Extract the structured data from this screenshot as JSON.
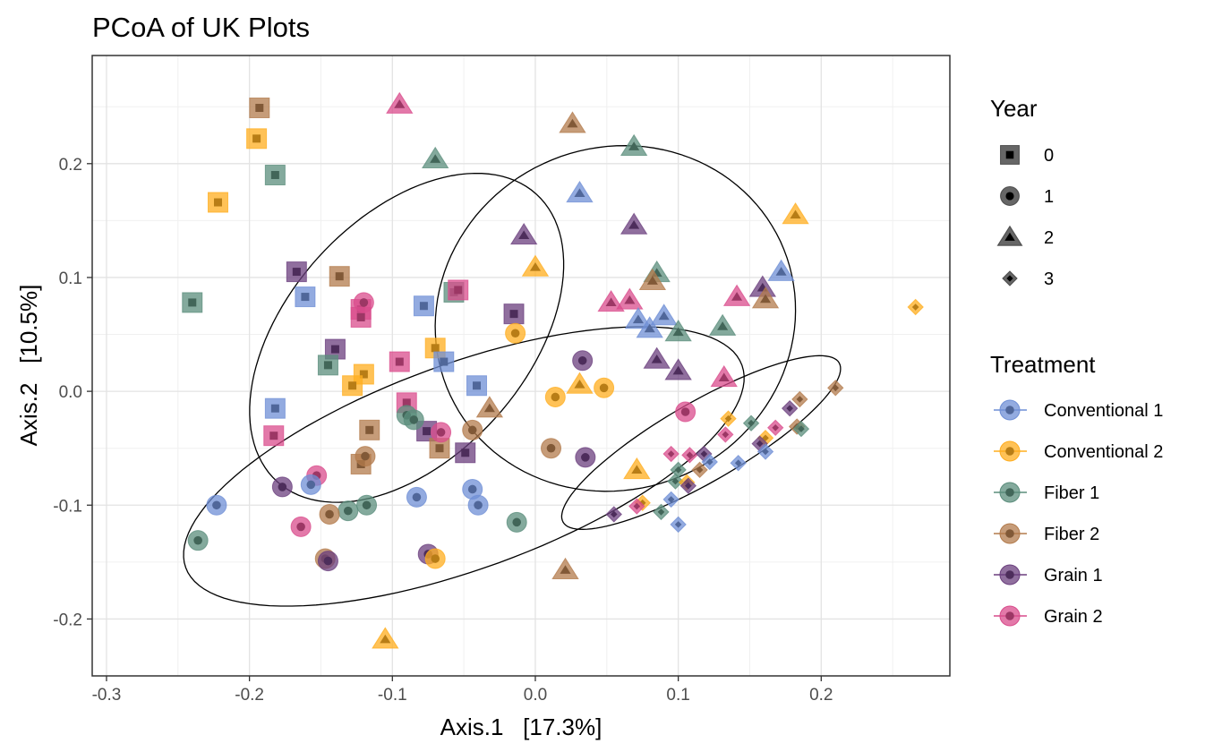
{
  "chart_data": {
    "type": "scatter",
    "title": "PCoA of UK Plots",
    "xlabel": "Axis.1   [17.3%]",
    "ylabel": "Axis.2   [10.5%]",
    "xlim": [
      -0.31,
      0.29
    ],
    "ylim": [
      -0.25,
      0.295
    ],
    "xticks": [
      -0.3,
      -0.2,
      -0.1,
      0.0,
      0.1,
      0.2
    ],
    "xtick_labels": [
      "-0.3",
      "-0.2",
      "-0.1",
      "0.0",
      "0.1",
      "0.2"
    ],
    "yticks": [
      -0.2,
      -0.1,
      0.0,
      0.1,
      0.2
    ],
    "ytick_labels": [
      "-0.2",
      "-0.1",
      "0.0",
      "0.1",
      "0.2"
    ],
    "grid": true,
    "legend_position": "right",
    "legend_year": {
      "title": "Year",
      "items": [
        {
          "label": "0",
          "shape": "square"
        },
        {
          "label": "1",
          "shape": "circle"
        },
        {
          "label": "2",
          "shape": "triangle"
        },
        {
          "label": "3",
          "shape": "diamond"
        }
      ]
    },
    "legend_treatment": {
      "title": "Treatment",
      "items": [
        {
          "label": "Conventional 1",
          "color": "#6f8fd6"
        },
        {
          "label": "Conventional 2",
          "color": "#ffad1f"
        },
        {
          "label": "Fiber 1",
          "color": "#5b8d7c"
        },
        {
          "label": "Fiber 2",
          "color": "#b37b4c"
        },
        {
          "label": "Grain 1",
          "color": "#6b3f7e"
        },
        {
          "label": "Grain 2",
          "color": "#d94c8c"
        }
      ]
    },
    "ellipses": [
      {
        "cx": -0.09,
        "cy": 0.047,
        "rx": 0.17,
        "ry": 0.105,
        "angle_deg": 48
      },
      {
        "cx": 0.056,
        "cy": 0.064,
        "rx": 0.15,
        "ry": 0.16,
        "angle_deg": 115
      },
      {
        "cx": -0.05,
        "cy": -0.066,
        "rx": 0.26,
        "ry": 0.09,
        "angle_deg": 20
      },
      {
        "cx": 0.116,
        "cy": -0.045,
        "rx": 0.14,
        "ry": 0.035,
        "angle_deg": 30
      }
    ],
    "points": [
      {
        "x": -0.193,
        "y": 0.249,
        "year": 0,
        "treatment": "Fiber 2"
      },
      {
        "x": -0.195,
        "y": 0.222,
        "year": 0,
        "treatment": "Conventional 2"
      },
      {
        "x": -0.182,
        "y": 0.19,
        "year": 0,
        "treatment": "Fiber 1"
      },
      {
        "x": -0.222,
        "y": 0.166,
        "year": 0,
        "treatment": "Conventional 2"
      },
      {
        "x": -0.167,
        "y": 0.105,
        "year": 0,
        "treatment": "Grain 1"
      },
      {
        "x": -0.137,
        "y": 0.101,
        "year": 0,
        "treatment": "Fiber 2"
      },
      {
        "x": -0.161,
        "y": 0.083,
        "year": 0,
        "treatment": "Conventional 1"
      },
      {
        "x": -0.24,
        "y": 0.078,
        "year": 0,
        "treatment": "Fiber 1"
      },
      {
        "x": -0.122,
        "y": 0.072,
        "year": 0,
        "treatment": "Grain 2"
      },
      {
        "x": -0.078,
        "y": 0.075,
        "year": 0,
        "treatment": "Conventional 1"
      },
      {
        "x": -0.057,
        "y": 0.087,
        "year": 0,
        "treatment": "Fiber 1"
      },
      {
        "x": -0.054,
        "y": 0.089,
        "year": 0,
        "treatment": "Grain 2"
      },
      {
        "x": -0.015,
        "y": 0.068,
        "year": 0,
        "treatment": "Grain 1"
      },
      {
        "x": -0.122,
        "y": 0.065,
        "year": 0,
        "treatment": "Grain 2"
      },
      {
        "x": -0.14,
        "y": 0.037,
        "year": 0,
        "treatment": "Grain 1"
      },
      {
        "x": -0.145,
        "y": 0.023,
        "year": 0,
        "treatment": "Fiber 1"
      },
      {
        "x": -0.12,
        "y": 0.015,
        "year": 0,
        "treatment": "Conventional 2"
      },
      {
        "x": -0.128,
        "y": 0.005,
        "year": 0,
        "treatment": "Conventional 2"
      },
      {
        "x": -0.095,
        "y": 0.026,
        "year": 0,
        "treatment": "Grain 2"
      },
      {
        "x": -0.07,
        "y": 0.038,
        "year": 0,
        "treatment": "Conventional 2"
      },
      {
        "x": -0.064,
        "y": 0.026,
        "year": 0,
        "treatment": "Conventional 1"
      },
      {
        "x": -0.041,
        "y": 0.005,
        "year": 0,
        "treatment": "Conventional 1"
      },
      {
        "x": -0.182,
        "y": -0.015,
        "year": 0,
        "treatment": "Conventional 1"
      },
      {
        "x": -0.183,
        "y": -0.039,
        "year": 0,
        "treatment": "Grain 2"
      },
      {
        "x": -0.09,
        "y": -0.01,
        "year": 0,
        "treatment": "Grain 2"
      },
      {
        "x": -0.116,
        "y": -0.034,
        "year": 0,
        "treatment": "Fiber 2"
      },
      {
        "x": -0.076,
        "y": -0.035,
        "year": 0,
        "treatment": "Grain 1"
      },
      {
        "x": -0.067,
        "y": -0.05,
        "year": 0,
        "treatment": "Fiber 2"
      },
      {
        "x": -0.049,
        "y": -0.054,
        "year": 0,
        "treatment": "Grain 1"
      },
      {
        "x": -0.122,
        "y": -0.064,
        "year": 0,
        "treatment": "Fiber 2"
      },
      {
        "x": -0.12,
        "y": 0.078,
        "year": 1,
        "treatment": "Grain 2"
      },
      {
        "x": -0.014,
        "y": 0.051,
        "year": 1,
        "treatment": "Conventional 2"
      },
      {
        "x": 0.033,
        "y": 0.027,
        "year": 1,
        "treatment": "Grain 1"
      },
      {
        "x": 0.014,
        "y": -0.005,
        "year": 1,
        "treatment": "Conventional 2"
      },
      {
        "x": 0.048,
        "y": 0.003,
        "year": 1,
        "treatment": "Conventional 2"
      },
      {
        "x": 0.105,
        "y": -0.018,
        "year": 1,
        "treatment": "Grain 2"
      },
      {
        "x": -0.09,
        "y": -0.021,
        "year": 1,
        "treatment": "Fiber 1"
      },
      {
        "x": -0.085,
        "y": -0.025,
        "year": 1,
        "treatment": "Fiber 1"
      },
      {
        "x": -0.066,
        "y": -0.036,
        "year": 1,
        "treatment": "Grain 2"
      },
      {
        "x": -0.044,
        "y": -0.034,
        "year": 1,
        "treatment": "Fiber 2"
      },
      {
        "x": 0.011,
        "y": -0.05,
        "year": 1,
        "treatment": "Fiber 2"
      },
      {
        "x": 0.035,
        "y": -0.058,
        "year": 1,
        "treatment": "Grain 1"
      },
      {
        "x": -0.119,
        "y": -0.057,
        "year": 1,
        "treatment": "Fiber 2"
      },
      {
        "x": -0.153,
        "y": -0.074,
        "year": 1,
        "treatment": "Grain 2"
      },
      {
        "x": -0.157,
        "y": -0.082,
        "year": 1,
        "treatment": "Conventional 1"
      },
      {
        "x": -0.177,
        "y": -0.084,
        "year": 1,
        "treatment": "Grain 1"
      },
      {
        "x": -0.223,
        "y": -0.1,
        "year": 1,
        "treatment": "Conventional 1"
      },
      {
        "x": -0.236,
        "y": -0.131,
        "year": 1,
        "treatment": "Fiber 1"
      },
      {
        "x": -0.118,
        "y": -0.1,
        "year": 1,
        "treatment": "Fiber 1"
      },
      {
        "x": -0.131,
        "y": -0.105,
        "year": 1,
        "treatment": "Fiber 1"
      },
      {
        "x": -0.144,
        "y": -0.108,
        "year": 1,
        "treatment": "Fiber 2"
      },
      {
        "x": -0.164,
        "y": -0.119,
        "year": 1,
        "treatment": "Grain 2"
      },
      {
        "x": -0.083,
        "y": -0.093,
        "year": 1,
        "treatment": "Conventional 1"
      },
      {
        "x": -0.044,
        "y": -0.086,
        "year": 1,
        "treatment": "Conventional 1"
      },
      {
        "x": -0.04,
        "y": -0.1,
        "year": 1,
        "treatment": "Conventional 1"
      },
      {
        "x": -0.013,
        "y": -0.115,
        "year": 1,
        "treatment": "Fiber 1"
      },
      {
        "x": -0.147,
        "y": -0.147,
        "year": 1,
        "treatment": "Fiber 2"
      },
      {
        "x": -0.145,
        "y": -0.149,
        "year": 1,
        "treatment": "Grain 1"
      },
      {
        "x": -0.075,
        "y": -0.143,
        "year": 1,
        "treatment": "Grain 1"
      },
      {
        "x": -0.07,
        "y": -0.147,
        "year": 1,
        "treatment": "Conventional 2"
      },
      {
        "x": -0.095,
        "y": 0.252,
        "year": 2,
        "treatment": "Grain 2"
      },
      {
        "x": 0.026,
        "y": 0.235,
        "year": 2,
        "treatment": "Fiber 2"
      },
      {
        "x": 0.069,
        "y": 0.215,
        "year": 2,
        "treatment": "Fiber 1"
      },
      {
        "x": -0.07,
        "y": 0.204,
        "year": 2,
        "treatment": "Fiber 1"
      },
      {
        "x": 0.031,
        "y": 0.174,
        "year": 2,
        "treatment": "Conventional 1"
      },
      {
        "x": 0.182,
        "y": 0.155,
        "year": 2,
        "treatment": "Conventional 2"
      },
      {
        "x": 0.069,
        "y": 0.146,
        "year": 2,
        "treatment": "Grain 1"
      },
      {
        "x": -0.008,
        "y": 0.137,
        "year": 2,
        "treatment": "Grain 1"
      },
      {
        "x": 0.0,
        "y": 0.109,
        "year": 2,
        "treatment": "Conventional 2"
      },
      {
        "x": 0.172,
        "y": 0.105,
        "year": 2,
        "treatment": "Conventional 1"
      },
      {
        "x": 0.085,
        "y": 0.104,
        "year": 2,
        "treatment": "Fiber 1"
      },
      {
        "x": 0.082,
        "y": 0.097,
        "year": 2,
        "treatment": "Fiber 2"
      },
      {
        "x": 0.159,
        "y": 0.091,
        "year": 2,
        "treatment": "Grain 1"
      },
      {
        "x": 0.141,
        "y": 0.083,
        "year": 2,
        "treatment": "Grain 2"
      },
      {
        "x": 0.161,
        "y": 0.081,
        "year": 2,
        "treatment": "Fiber 2"
      },
      {
        "x": 0.053,
        "y": 0.078,
        "year": 2,
        "treatment": "Grain 2"
      },
      {
        "x": 0.066,
        "y": 0.08,
        "year": 2,
        "treatment": "Grain 2"
      },
      {
        "x": 0.072,
        "y": 0.063,
        "year": 2,
        "treatment": "Conventional 1"
      },
      {
        "x": 0.09,
        "y": 0.066,
        "year": 2,
        "treatment": "Conventional 1"
      },
      {
        "x": 0.08,
        "y": 0.055,
        "year": 2,
        "treatment": "Conventional 1"
      },
      {
        "x": 0.1,
        "y": 0.052,
        "year": 2,
        "treatment": "Fiber 1"
      },
      {
        "x": 0.131,
        "y": 0.057,
        "year": 2,
        "treatment": "Fiber 1"
      },
      {
        "x": 0.085,
        "y": 0.028,
        "year": 2,
        "treatment": "Grain 1"
      },
      {
        "x": 0.1,
        "y": 0.018,
        "year": 2,
        "treatment": "Grain 1"
      },
      {
        "x": 0.132,
        "y": 0.012,
        "year": 2,
        "treatment": "Grain 2"
      },
      {
        "x": 0.031,
        "y": 0.006,
        "year": 2,
        "treatment": "Conventional 2"
      },
      {
        "x": -0.032,
        "y": -0.015,
        "year": 2,
        "treatment": "Fiber 2"
      },
      {
        "x": 0.071,
        "y": -0.069,
        "year": 2,
        "treatment": "Conventional 2"
      },
      {
        "x": 0.021,
        "y": -0.157,
        "year": 2,
        "treatment": "Fiber 2"
      },
      {
        "x": -0.105,
        "y": -0.218,
        "year": 2,
        "treatment": "Conventional 2"
      },
      {
        "x": 0.266,
        "y": 0.074,
        "year": 3,
        "treatment": "Conventional 2"
      },
      {
        "x": 0.21,
        "y": 0.003,
        "year": 3,
        "treatment": "Fiber 2"
      },
      {
        "x": 0.185,
        "y": -0.007,
        "year": 3,
        "treatment": "Fiber 2"
      },
      {
        "x": 0.178,
        "y": -0.015,
        "year": 3,
        "treatment": "Grain 1"
      },
      {
        "x": 0.135,
        "y": -0.024,
        "year": 3,
        "treatment": "Conventional 2"
      },
      {
        "x": 0.151,
        "y": -0.028,
        "year": 3,
        "treatment": "Fiber 1"
      },
      {
        "x": 0.133,
        "y": -0.038,
        "year": 3,
        "treatment": "Grain 2"
      },
      {
        "x": 0.183,
        "y": -0.031,
        "year": 3,
        "treatment": "Fiber 2"
      },
      {
        "x": 0.186,
        "y": -0.033,
        "year": 3,
        "treatment": "Fiber 1"
      },
      {
        "x": 0.168,
        "y": -0.032,
        "year": 3,
        "treatment": "Grain 2"
      },
      {
        "x": 0.161,
        "y": -0.041,
        "year": 3,
        "treatment": "Conventional 2"
      },
      {
        "x": 0.157,
        "y": -0.046,
        "year": 3,
        "treatment": "Grain 1"
      },
      {
        "x": 0.161,
        "y": -0.053,
        "year": 3,
        "treatment": "Conventional 1"
      },
      {
        "x": 0.095,
        "y": -0.055,
        "year": 3,
        "treatment": "Grain 2"
      },
      {
        "x": 0.108,
        "y": -0.056,
        "year": 3,
        "treatment": "Grain 2"
      },
      {
        "x": 0.118,
        "y": -0.055,
        "year": 3,
        "treatment": "Grain 1"
      },
      {
        "x": 0.122,
        "y": -0.062,
        "year": 3,
        "treatment": "Conventional 1"
      },
      {
        "x": 0.142,
        "y": -0.063,
        "year": 3,
        "treatment": "Conventional 1"
      },
      {
        "x": 0.1,
        "y": -0.069,
        "year": 3,
        "treatment": "Fiber 1"
      },
      {
        "x": 0.115,
        "y": -0.069,
        "year": 3,
        "treatment": "Fiber 2"
      },
      {
        "x": 0.098,
        "y": -0.079,
        "year": 3,
        "treatment": "Fiber 1"
      },
      {
        "x": 0.106,
        "y": -0.08,
        "year": 3,
        "treatment": "Conventional 2"
      },
      {
        "x": 0.107,
        "y": -0.083,
        "year": 3,
        "treatment": "Grain 1"
      },
      {
        "x": 0.095,
        "y": -0.095,
        "year": 3,
        "treatment": "Conventional 1"
      },
      {
        "x": 0.075,
        "y": -0.098,
        "year": 3,
        "treatment": "Conventional 2"
      },
      {
        "x": 0.071,
        "y": -0.101,
        "year": 3,
        "treatment": "Grain 2"
      },
      {
        "x": 0.088,
        "y": -0.106,
        "year": 3,
        "treatment": "Fiber 1"
      },
      {
        "x": 0.055,
        "y": -0.108,
        "year": 3,
        "treatment": "Grain 1"
      },
      {
        "x": 0.1,
        "y": -0.117,
        "year": 3,
        "treatment": "Conventional 1"
      }
    ]
  }
}
